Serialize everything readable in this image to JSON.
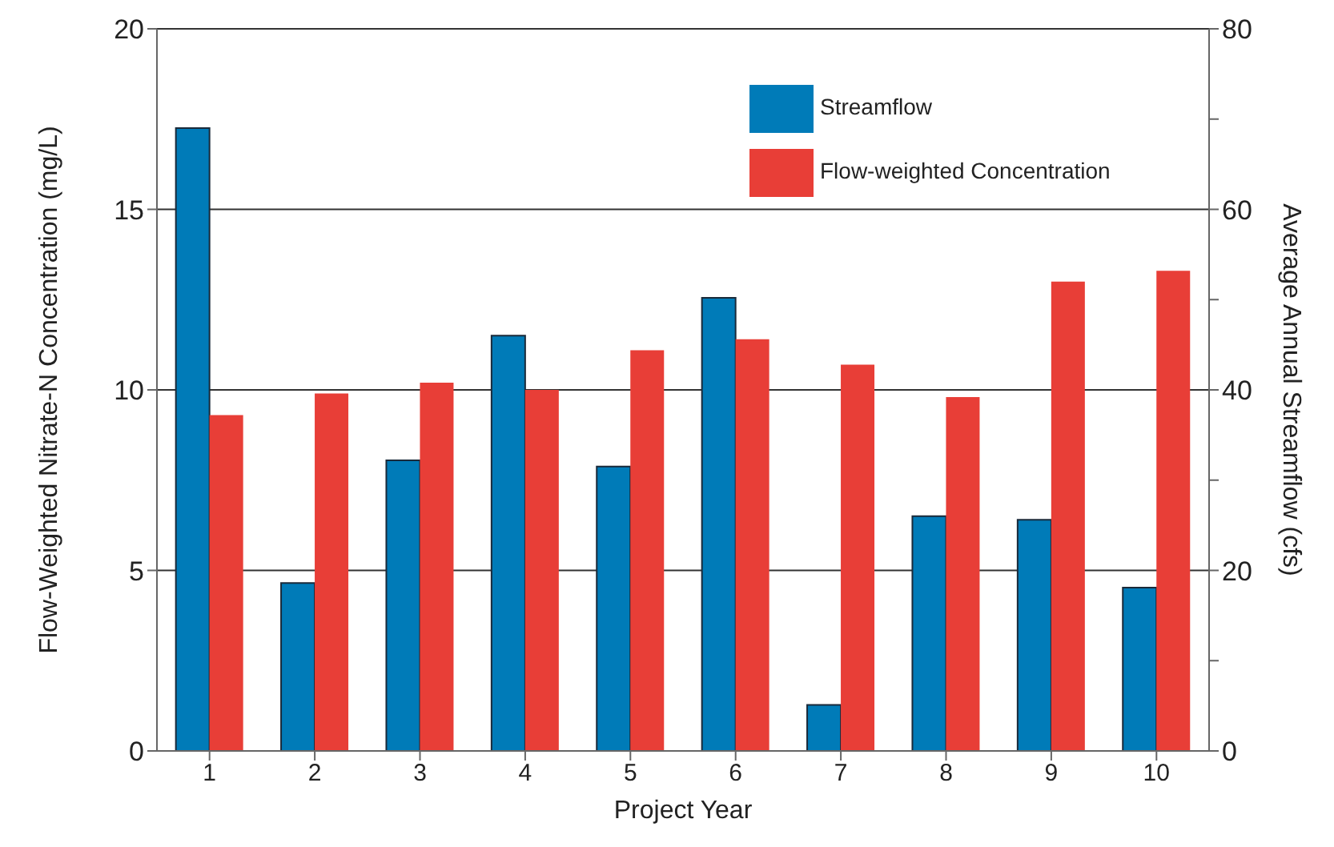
{
  "chart_data": {
    "type": "bar",
    "xlabel": "Project Year",
    "ylabel": "Flow-Weighted Nitrate-N Concentration (mg/L)",
    "y2label": "Average Annual Streamflow (cfs)",
    "categories": [
      "1",
      "2",
      "3",
      "4",
      "5",
      "6",
      "7",
      "8",
      "9",
      "10"
    ],
    "series": [
      {
        "name": "Streamflow",
        "color": "#007bb8",
        "axis": "y2",
        "values": [
          69,
          18.6,
          32.2,
          46,
          31.5,
          50.2,
          5.1,
          26,
          25.6,
          18.1
        ]
      },
      {
        "name": "Flow-weighted Concentration",
        "color": "#e83e37",
        "values": [
          9.3,
          9.9,
          10.2,
          10,
          11.1,
          11.4,
          10.7,
          9.8,
          13,
          13.3
        ]
      }
    ],
    "ylim": [
      0,
      20
    ],
    "yticks": [
      0,
      5,
      10,
      15,
      20
    ],
    "y2lim": [
      0,
      80
    ],
    "y2ticks": [
      0,
      {
        "value": 10,
        "label": null
      },
      20,
      {
        "value": 30,
        "label": null
      },
      40,
      {
        "value": 50,
        "label": null
      },
      60,
      {
        "value": 70,
        "label": null
      },
      80
    ],
    "grid": "y",
    "legend": "top right"
  }
}
